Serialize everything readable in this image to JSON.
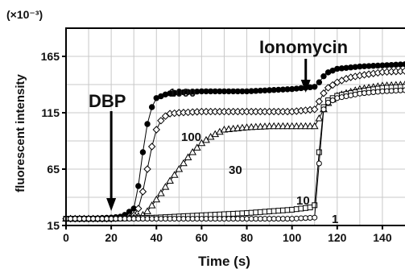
{
  "chart_data": {
    "type": "line",
    "title": "",
    "xlabel": "Time (s)",
    "ylabel": "fluorescent intensity",
    "y_multiplier": "(×10⁻³)",
    "xlim": [
      0,
      150
    ],
    "ylim": [
      15,
      190
    ],
    "x_ticks": [
      0,
      20,
      40,
      60,
      80,
      100,
      120,
      140
    ],
    "y_ticks": [
      15,
      65,
      115,
      165
    ],
    "grid": true,
    "annotations": [
      {
        "id": "dbp",
        "text": "DBP",
        "arrow_x": 20
      },
      {
        "id": "ionomycin",
        "text": "Ionomycin",
        "arrow_x": 110
      }
    ],
    "series": [
      {
        "name": "1000",
        "marker": "filled-circle",
        "x": [
          0,
          10,
          20,
          25,
          30,
          32,
          34,
          36,
          38,
          40,
          45,
          50,
          60,
          70,
          80,
          90,
          100,
          105,
          110,
          112,
          115,
          120,
          125,
          130,
          140,
          150
        ],
        "y": [
          21,
          21,
          22,
          23,
          30,
          50,
          80,
          105,
          120,
          128,
          132,
          133,
          134,
          134,
          134,
          135,
          136,
          137,
          138,
          142,
          150,
          154,
          155,
          156,
          157,
          158
        ]
      },
      {
        "name": "100",
        "marker": "open-diamond",
        "x": [
          0,
          10,
          20,
          25,
          30,
          32,
          34,
          36,
          38,
          40,
          42,
          45,
          50,
          60,
          70,
          80,
          90,
          100,
          110,
          112,
          115,
          120,
          125,
          130,
          140,
          150
        ],
        "y": [
          21,
          21,
          21,
          22,
          24,
          30,
          45,
          65,
          85,
          100,
          108,
          114,
          115,
          116,
          116,
          116,
          116,
          116,
          118,
          125,
          136,
          142,
          146,
          148,
          151,
          152
        ]
      },
      {
        "name": "30",
        "marker": "open-triangle",
        "x": [
          0,
          10,
          20,
          30,
          35,
          40,
          45,
          50,
          55,
          60,
          65,
          70,
          80,
          90,
          100,
          110,
          112,
          115,
          120,
          130,
          140,
          150
        ],
        "y": [
          21,
          21,
          21,
          22,
          25,
          38,
          52,
          65,
          78,
          88,
          95,
          100,
          102,
          103,
          103,
          103,
          110,
          122,
          130,
          136,
          139,
          140
        ]
      },
      {
        "name": "10",
        "marker": "open-square",
        "x": [
          0,
          20,
          40,
          60,
          80,
          100,
          108,
          110,
          112,
          114,
          116,
          120,
          130,
          140,
          150
        ],
        "y": [
          21,
          21,
          22,
          24,
          26,
          29,
          31,
          33,
          80,
          120,
          126,
          130,
          134,
          137,
          138
        ]
      },
      {
        "name": "1",
        "marker": "open-circle",
        "x": [
          0,
          20,
          40,
          60,
          80,
          100,
          110,
          112,
          114,
          116,
          120,
          130,
          140,
          150
        ],
        "y": [
          21,
          21,
          21,
          21,
          21,
          21,
          22,
          70,
          118,
          124,
          128,
          132,
          134,
          135
        ]
      }
    ]
  }
}
